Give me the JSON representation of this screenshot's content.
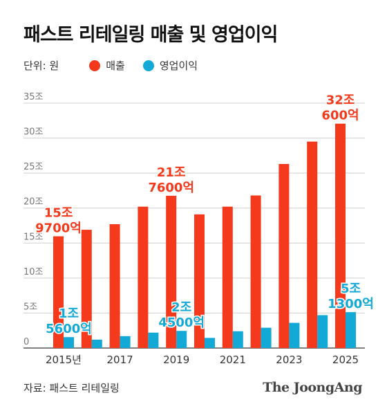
{
  "title": "패스트 리테일링 매출 및 영업이익",
  "unit_label": "단위: 원",
  "source": "자료: 패스트 리테일링",
  "brand": "The JoongAng",
  "colors": {
    "revenue": "#f5391c",
    "operating_profit": "#13a9d6",
    "grid": "#cfcfcf",
    "axis_text": "#777777"
  },
  "chart_data": {
    "type": "bar",
    "unit": "조 원",
    "x": [
      2015,
      2016,
      2017,
      2018,
      2019,
      2020,
      2021,
      2022,
      2023,
      2024,
      2025
    ],
    "x_tick_labels": [
      {
        "x": 2015,
        "label": "2015년"
      },
      {
        "x": 2017,
        "label": "2017"
      },
      {
        "x": 2019,
        "label": "2019"
      },
      {
        "x": 2021,
        "label": "2021"
      },
      {
        "x": 2023,
        "label": "2023"
      },
      {
        "x": 2025,
        "label": "2025"
      }
    ],
    "ylim": [
      0,
      35
    ],
    "y_ticks": [
      {
        "value": 0,
        "label": "0"
      },
      {
        "value": 5,
        "label": "5조"
      },
      {
        "value": 10,
        "label": "10조"
      },
      {
        "value": 15,
        "label": "15조"
      },
      {
        "value": 20,
        "label": "20조"
      },
      {
        "value": 25,
        "label": "25조"
      },
      {
        "value": 30,
        "label": "30조"
      },
      {
        "value": 35,
        "label": "35조"
      }
    ],
    "grid": true,
    "series": [
      {
        "name": "매출",
        "color": "#f5391c",
        "values": [
          15.97,
          16.9,
          17.7,
          20.2,
          21.76,
          19.1,
          20.2,
          21.8,
          26.3,
          29.5,
          32.06
        ]
      },
      {
        "name": "영업이익",
        "color": "#13a9d6",
        "values": [
          1.56,
          1.2,
          1.7,
          2.2,
          2.45,
          1.45,
          2.4,
          2.9,
          3.6,
          4.7,
          5.13
        ]
      }
    ],
    "annotations": [
      {
        "series": 0,
        "index": 0,
        "lines": [
          "15조",
          "9700억"
        ]
      },
      {
        "series": 0,
        "index": 4,
        "lines": [
          "21조",
          "7600억"
        ]
      },
      {
        "series": 0,
        "index": 10,
        "lines": [
          "32조",
          "600억"
        ]
      },
      {
        "series": 1,
        "index": 0,
        "lines": [
          "1조",
          "5600억"
        ]
      },
      {
        "series": 1,
        "index": 4,
        "lines": [
          "2조",
          "4500억"
        ]
      },
      {
        "series": 1,
        "index": 10,
        "lines": [
          "5조",
          "1300억"
        ]
      }
    ]
  }
}
